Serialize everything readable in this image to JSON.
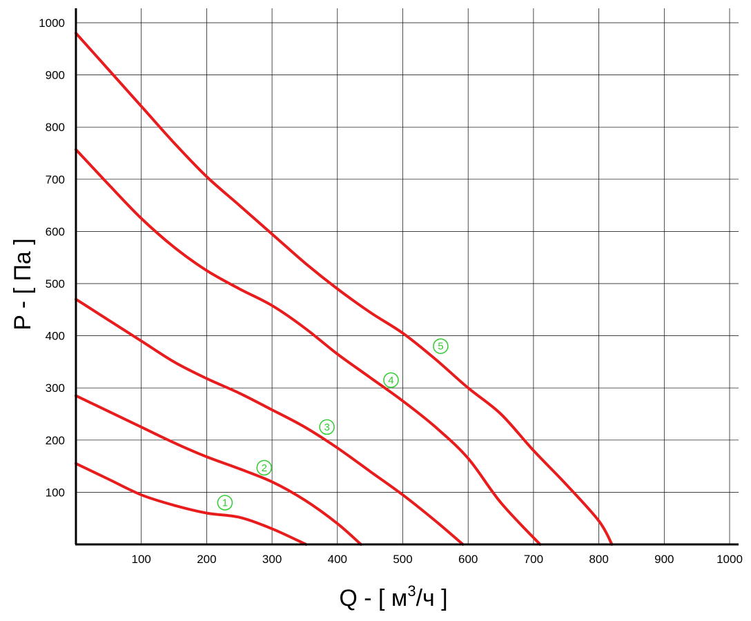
{
  "chart_data": {
    "type": "line",
    "xlabel_main": "Q - [ м",
    "xlabel_sup": "3",
    "xlabel_tail": "/ч ]",
    "ylabel": "P - [ Па ]",
    "xlim": [
      0,
      1000
    ],
    "ylim": [
      0,
      1000
    ],
    "x_ticks": [
      100,
      200,
      300,
      400,
      500,
      600,
      700,
      800,
      900,
      1000
    ],
    "y_ticks": [
      100,
      200,
      300,
      400,
      500,
      600,
      700,
      800,
      900,
      1000
    ],
    "grid": true,
    "line_color": "#e81c1c",
    "marker_color": "#2ecc2e",
    "series": [
      {
        "label": "①",
        "label_at": [
          228,
          80
        ],
        "points": [
          [
            0,
            155
          ],
          [
            50,
            125
          ],
          [
            100,
            95
          ],
          [
            150,
            75
          ],
          [
            200,
            60
          ],
          [
            250,
            52
          ],
          [
            300,
            30
          ],
          [
            352,
            0
          ]
        ]
      },
      {
        "label": "②",
        "label_at": [
          288,
          147
        ],
        "points": [
          [
            0,
            285
          ],
          [
            50,
            255
          ],
          [
            100,
            225
          ],
          [
            150,
            195
          ],
          [
            200,
            168
          ],
          [
            250,
            145
          ],
          [
            300,
            120
          ],
          [
            350,
            85
          ],
          [
            400,
            40
          ],
          [
            436,
            0
          ]
        ]
      },
      {
        "label": "③",
        "label_at": [
          384,
          225
        ],
        "points": [
          [
            0,
            470
          ],
          [
            50,
            430
          ],
          [
            100,
            390
          ],
          [
            150,
            350
          ],
          [
            200,
            318
          ],
          [
            250,
            290
          ],
          [
            300,
            258
          ],
          [
            350,
            225
          ],
          [
            400,
            185
          ],
          [
            450,
            140
          ],
          [
            500,
            95
          ],
          [
            550,
            45
          ],
          [
            592,
            0
          ]
        ]
      },
      {
        "label": "④",
        "label_at": [
          482,
          315
        ],
        "points": [
          [
            0,
            757
          ],
          [
            50,
            690
          ],
          [
            100,
            625
          ],
          [
            150,
            570
          ],
          [
            200,
            525
          ],
          [
            250,
            490
          ],
          [
            300,
            458
          ],
          [
            350,
            415
          ],
          [
            400,
            365
          ],
          [
            450,
            320
          ],
          [
            500,
            275
          ],
          [
            550,
            225
          ],
          [
            600,
            165
          ],
          [
            650,
            80
          ],
          [
            710,
            0
          ]
        ]
      },
      {
        "label": "⑤",
        "label_at": [
          558,
          380
        ],
        "points": [
          [
            0,
            980
          ],
          [
            50,
            910
          ],
          [
            100,
            840
          ],
          [
            150,
            770
          ],
          [
            200,
            705
          ],
          [
            250,
            650
          ],
          [
            300,
            595
          ],
          [
            350,
            540
          ],
          [
            400,
            490
          ],
          [
            450,
            445
          ],
          [
            500,
            405
          ],
          [
            550,
            355
          ],
          [
            600,
            300
          ],
          [
            650,
            250
          ],
          [
            700,
            180
          ],
          [
            750,
            115
          ],
          [
            800,
            45
          ],
          [
            820,
            0
          ]
        ]
      }
    ]
  }
}
